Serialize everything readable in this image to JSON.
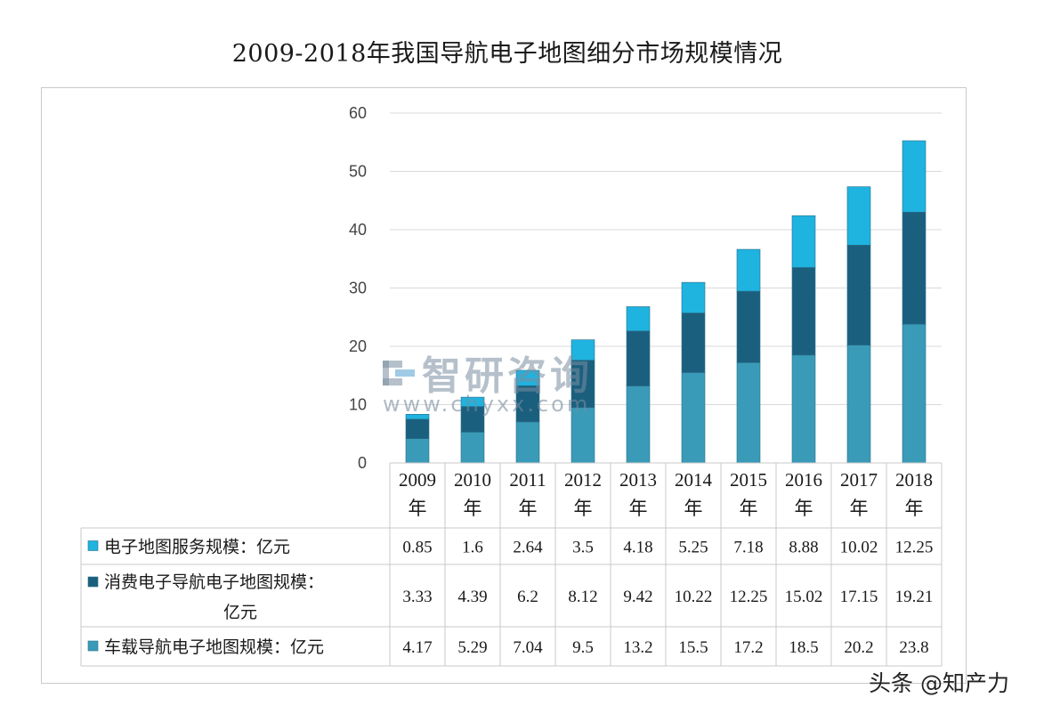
{
  "title": "2009-2018年我国导航电子地图细分市场规模情况",
  "watermark": {
    "logo_text": "智研咨询",
    "url": "www.chyxx.com"
  },
  "credit": "头条 @知产力",
  "colors": {
    "service": "#1fb3e0",
    "consumer": "#1b5f7e",
    "vehicle": "#3a9bb8",
    "grid": "#d9d9d9",
    "table_border": "#c9c9c9"
  },
  "chart_data": {
    "type": "bar",
    "stacked": true,
    "title": "2009-2018年我国导航电子地图细分市场规模情况",
    "categories": [
      "2009年",
      "2010年",
      "2011年",
      "2012年",
      "2013年",
      "2014年",
      "2015年",
      "2016年",
      "2017年",
      "2018年"
    ],
    "ylim": [
      0,
      60
    ],
    "yticks": [
      0,
      10,
      20,
      30,
      40,
      50,
      60
    ],
    "grid": true,
    "legend": "data-table",
    "series": [
      {
        "key": "service",
        "name": "电子地图服务规模：亿元",
        "values": [
          0.85,
          1.6,
          2.64,
          3.5,
          4.18,
          5.25,
          7.18,
          8.88,
          10.02,
          12.25
        ]
      },
      {
        "key": "consumer",
        "name": "消费电子导航电子地图规模：亿元",
        "values": [
          3.33,
          4.39,
          6.2,
          8.12,
          9.42,
          10.22,
          12.25,
          15.02,
          17.15,
          19.21
        ]
      },
      {
        "key": "vehicle",
        "name": "车载导航电子地图规模：亿元",
        "values": [
          4.17,
          5.29,
          7.04,
          9.5,
          13.2,
          15.5,
          17.2,
          18.5,
          20.2,
          23.8
        ]
      }
    ]
  }
}
